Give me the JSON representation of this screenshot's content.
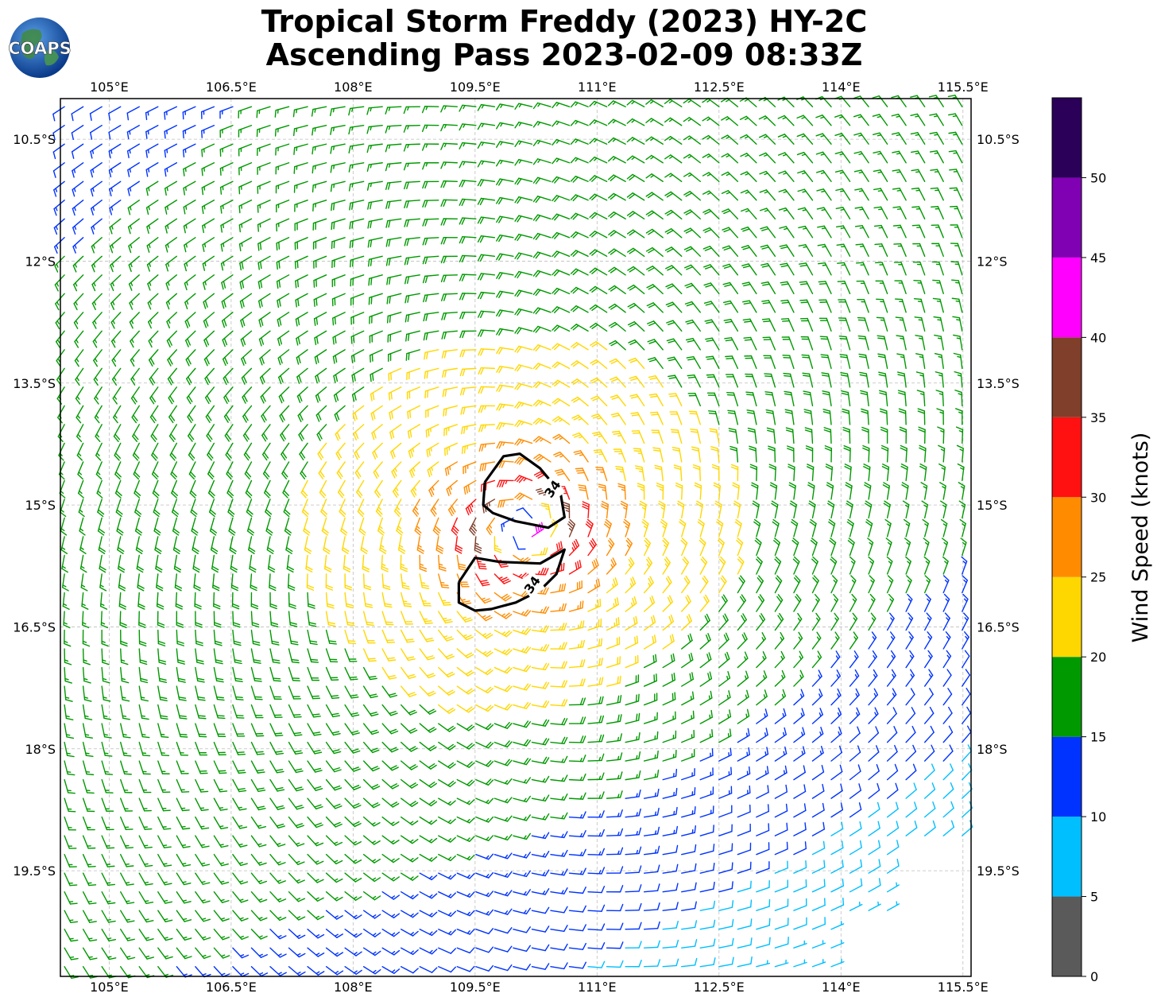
{
  "header": {
    "title_line1": "Tropical Storm Freddy (2023) HY-2C",
    "title_line2": "Ascending Pass 2023-02-09 08:33Z",
    "logo_text": "COAPS"
  },
  "chart_data": {
    "type": "wind-barb-map",
    "lon_ticks": [
      "105°E",
      "106.5°E",
      "108°E",
      "109.5°E",
      "111°E",
      "112.5°E",
      "114°E",
      "115.5°E"
    ],
    "lon_values": [
      105,
      106.5,
      108,
      109.5,
      111,
      112.5,
      114,
      115.5
    ],
    "lat_ticks": [
      "10.5°S",
      "12°S",
      "13.5°S",
      "15°S",
      "16.5°S",
      "18°S",
      "19.5°S"
    ],
    "lat_values": [
      -10.5,
      -12,
      -13.5,
      -15,
      -16.5,
      -18,
      -19.5
    ],
    "xlim": [
      104.4,
      115.6
    ],
    "ylim": [
      -20.8,
      -10.0
    ],
    "grid": true,
    "storm_center": {
      "lon": 110.1,
      "lat": -15.3
    },
    "contour_level_label": "34",
    "contour_labels": [
      {
        "text": "34",
        "lon": 110.45,
        "lat": -14.8
      },
      {
        "text": "34",
        "lon": 110.2,
        "lat": -15.98
      }
    ],
    "contours": [
      [
        [
          109.62,
          -14.72
        ],
        [
          109.85,
          -14.4
        ],
        [
          110.05,
          -14.37
        ],
        [
          110.3,
          -14.55
        ],
        [
          110.55,
          -14.85
        ],
        [
          110.6,
          -15.15
        ],
        [
          110.4,
          -15.28
        ],
        [
          110.0,
          -15.2
        ],
        [
          109.72,
          -15.1
        ],
        [
          109.6,
          -15.0
        ],
        [
          109.62,
          -14.72
        ]
      ],
      [
        [
          109.3,
          -15.95
        ],
        [
          109.5,
          -15.65
        ],
        [
          109.8,
          -15.7
        ],
        [
          110.3,
          -15.72
        ],
        [
          110.6,
          -15.55
        ],
        [
          110.5,
          -15.85
        ],
        [
          110.3,
          -16.05
        ],
        [
          110.0,
          -16.2
        ],
        [
          109.7,
          -16.28
        ],
        [
          109.5,
          -16.3
        ],
        [
          109.3,
          -16.2
        ],
        [
          109.3,
          -15.95
        ]
      ]
    ],
    "colorbar": {
      "label": "Wind Speed (knots)",
      "ticks": [
        0,
        5,
        10,
        15,
        20,
        25,
        30,
        35,
        40,
        45,
        50
      ],
      "bins": [
        {
          "min": 0,
          "max": 5,
          "color": "#5a5a5a"
        },
        {
          "min": 5,
          "max": 10,
          "color": "#00bfff"
        },
        {
          "min": 10,
          "max": 15,
          "color": "#0033ff"
        },
        {
          "min": 15,
          "max": 20,
          "color": "#009900"
        },
        {
          "min": 20,
          "max": 25,
          "color": "#ffd700"
        },
        {
          "min": 25,
          "max": 30,
          "color": "#ff8c00"
        },
        {
          "min": 30,
          "max": 35,
          "color": "#ff1111"
        },
        {
          "min": 35,
          "max": 40,
          "color": "#7f3f2a"
        },
        {
          "min": 40,
          "max": 45,
          "color": "#ff00ff"
        },
        {
          "min": 45,
          "max": 50,
          "color": "#8000b3"
        },
        {
          "min": 50,
          "max": 55,
          "color": "#2a0059"
        }
      ],
      "range": [
        0,
        55
      ]
    }
  }
}
